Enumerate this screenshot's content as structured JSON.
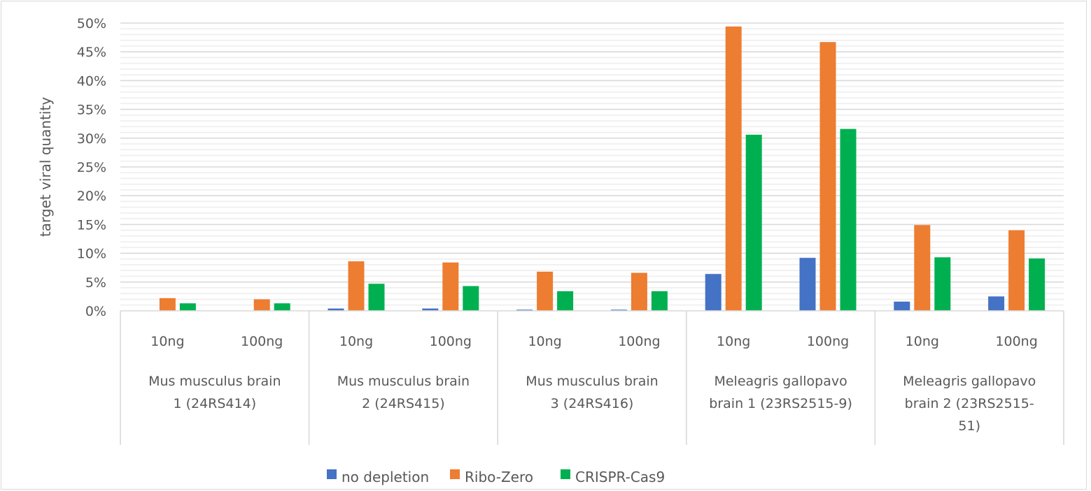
{
  "chart_data": {
    "type": "bar",
    "title": "",
    "xlabel": "",
    "ylabel": "target viral quantity",
    "ylim": [
      0,
      50
    ],
    "y_major_step": 5,
    "y_minor_step": 1,
    "y_tick_labels": [
      "0%",
      "5%",
      "10%",
      "15%",
      "20%",
      "25%",
      "30%",
      "35%",
      "40%",
      "45%",
      "50%"
    ],
    "grid": true,
    "legend_position": "bottom",
    "groups": [
      {
        "label": "Mus musculus brain 1 (24RS414)",
        "lines": [
          "Mus musculus brain",
          "1 (24RS414)"
        ]
      },
      {
        "label": "Mus musculus brain 2 (24RS415)",
        "lines": [
          "Mus musculus brain",
          "2 (24RS415)"
        ]
      },
      {
        "label": "Mus musculus brain 3 (24RS416)",
        "lines": [
          "Mus musculus brain",
          "3 (24RS416)"
        ]
      },
      {
        "label": "Meleagris gallopavo brain 1 (23RS2515-9)",
        "lines": [
          "Meleagris gallopavo",
          "brain 1 (23RS2515-9)"
        ]
      },
      {
        "label": "Meleagris gallopavo brain 2 (23RS2515-51)",
        "lines": [
          "Meleagris gallopavo",
          "brain 2 (23RS2515-",
          "51)"
        ]
      }
    ],
    "categories": [
      "10ng",
      "100ng",
      "10ng",
      "100ng",
      "10ng",
      "100ng",
      "10ng",
      "100ng",
      "10ng",
      "100ng"
    ],
    "series": [
      {
        "name": "no depletion",
        "color": "#4472c4",
        "values": [
          0.0,
          0.0,
          0.4,
          0.4,
          0.2,
          0.2,
          6.4,
          9.2,
          1.6,
          2.5
        ]
      },
      {
        "name": "Ribo-Zero",
        "color": "#ed7d31",
        "values": [
          2.2,
          2.0,
          8.6,
          8.4,
          6.8,
          6.6,
          49.4,
          46.7,
          14.9,
          14.0
        ]
      },
      {
        "name": "CRISPR-Cas9",
        "color": "#00b050",
        "values": [
          1.3,
          1.3,
          4.7,
          4.3,
          3.4,
          3.4,
          30.6,
          31.6,
          9.3,
          9.1
        ]
      }
    ]
  }
}
